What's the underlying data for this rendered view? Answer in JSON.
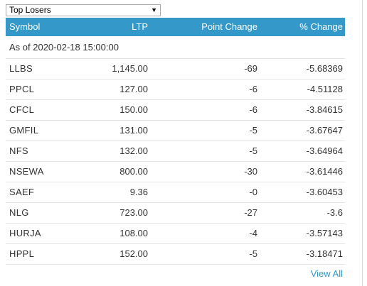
{
  "selector": {
    "selected": "Top Losers",
    "arrow_icon": "triangle-down-icon"
  },
  "table": {
    "headers": {
      "symbol": "Symbol",
      "ltp": "LTP",
      "point_change": "Point Change",
      "pct_change": "% Change"
    },
    "as_of": "As of 2020-02-18 15:00:00",
    "rows": [
      {
        "symbol": "LLBS",
        "ltp": "1,145.00",
        "point_change": "-69",
        "pct_change": "-5.68369"
      },
      {
        "symbol": "PPCL",
        "ltp": "127.00",
        "point_change": "-6",
        "pct_change": "-4.51128"
      },
      {
        "symbol": "CFCL",
        "ltp": "150.00",
        "point_change": "-6",
        "pct_change": "-3.84615"
      },
      {
        "symbol": "GMFIL",
        "ltp": "131.00",
        "point_change": "-5",
        "pct_change": "-3.67647"
      },
      {
        "symbol": "NFS",
        "ltp": "132.00",
        "point_change": "-5",
        "pct_change": "-3.64964"
      },
      {
        "symbol": "NSEWA",
        "ltp": "800.00",
        "point_change": "-30",
        "pct_change": "-3.61446"
      },
      {
        "symbol": "SAEF",
        "ltp": "9.36",
        "point_change": "-0",
        "pct_change": "-3.60453"
      },
      {
        "symbol": "NLG",
        "ltp": "723.00",
        "point_change": "-27",
        "pct_change": "-3.6"
      },
      {
        "symbol": "HURJA",
        "ltp": "108.00",
        "point_change": "-4",
        "pct_change": "-3.57143"
      },
      {
        "symbol": "HPPL",
        "ltp": "152.00",
        "point_change": "-5",
        "pct_change": "-3.18471"
      }
    ]
  },
  "footer": {
    "view_all": "View All"
  },
  "colors": {
    "header_bg": "#3498c8",
    "link": "#3498c8",
    "row_border": "#e3e3e3"
  }
}
